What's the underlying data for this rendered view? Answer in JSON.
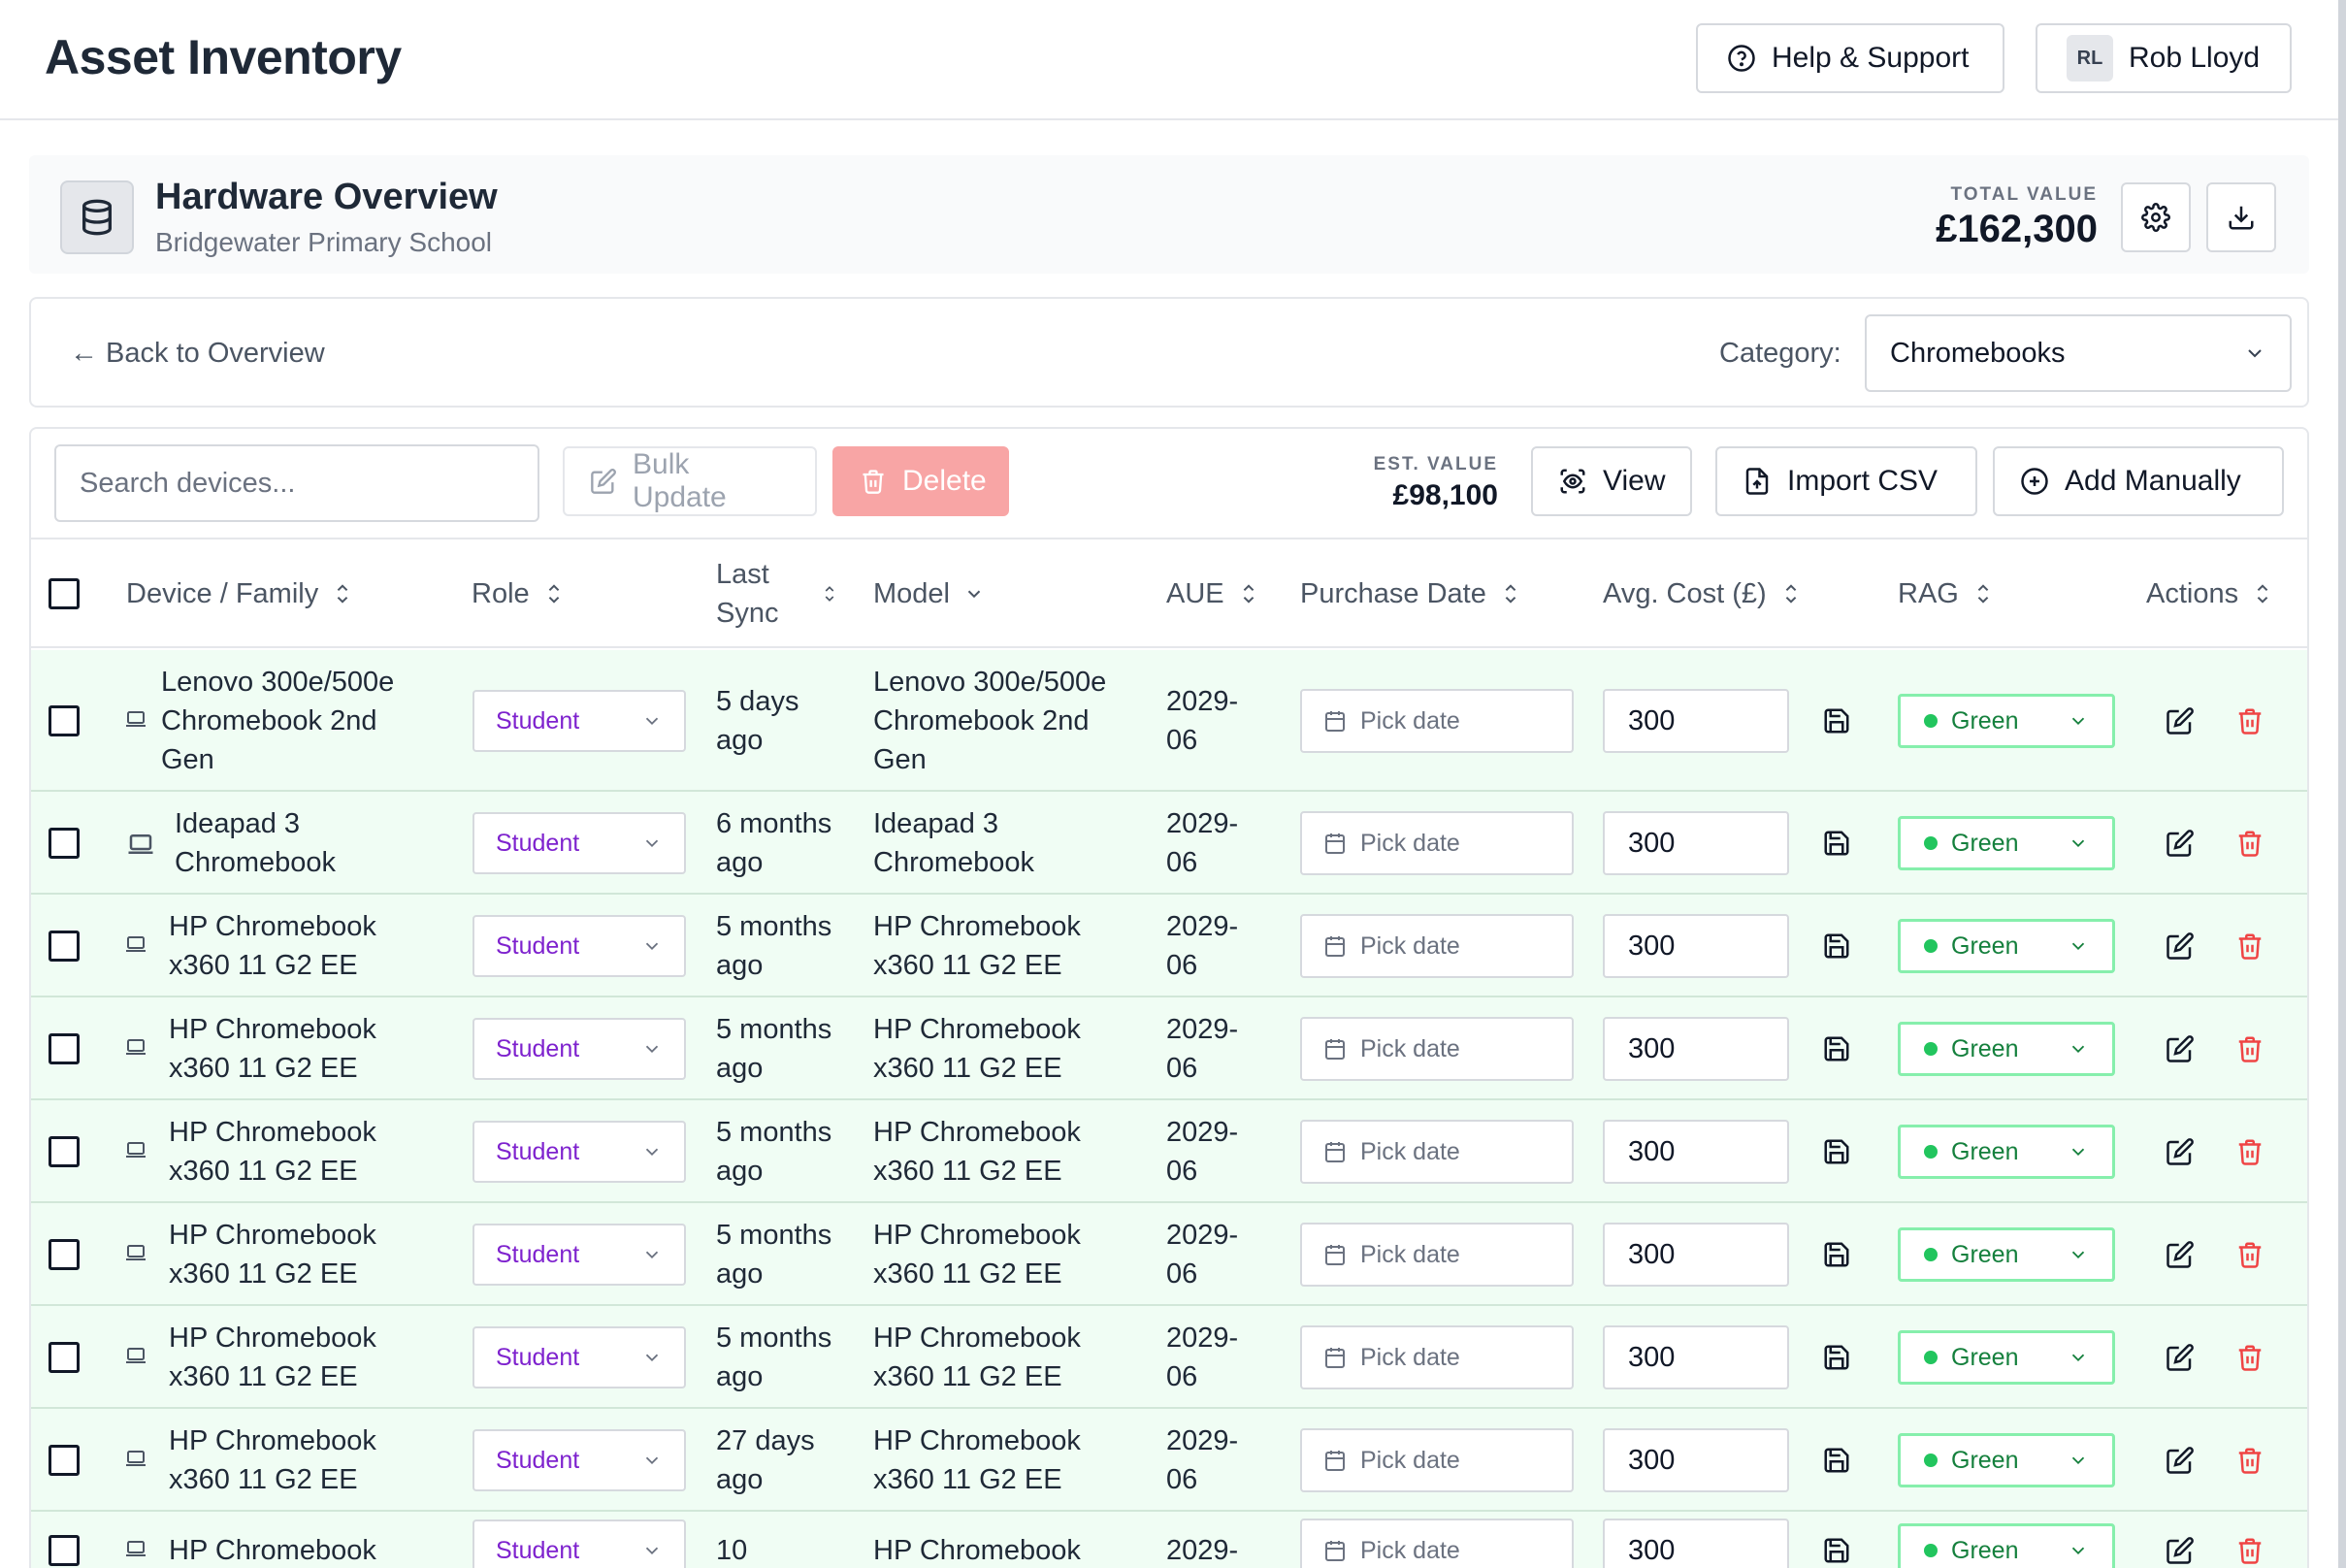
{
  "header": {
    "title": "Asset Inventory",
    "help_label": "Help & Support",
    "user_initials": "RL",
    "user_name": "Rob Lloyd"
  },
  "overview": {
    "title": "Hardware Overview",
    "subtitle": "Bridgewater Primary School",
    "total_value_label": "TOTAL VALUE",
    "total_value": "£162,300"
  },
  "category_bar": {
    "back_label": "← Back to Overview",
    "category_label": "Category:",
    "category_value": "Chromebooks"
  },
  "toolbar": {
    "search_placeholder": "Search devices...",
    "bulk_update_label": "Bulk Update",
    "delete_label": "Delete",
    "est_value_label": "EST. VALUE",
    "est_value": "£98,100",
    "view_label": "View",
    "import_label": "Import CSV",
    "add_label": "Add Manually"
  },
  "table": {
    "headers": {
      "device": "Device / Family",
      "role": "Role",
      "last_sync_1": "Last",
      "last_sync_2": "Sync",
      "model": "Model",
      "aue": "AUE",
      "purchase_date": "Purchase Date",
      "avg_cost": "Avg. Cost (£)",
      "rag": "RAG",
      "actions": "Actions"
    },
    "date_placeholder": "Pick date",
    "rows": [
      {
        "device": [
          "Lenovo 300e/500e",
          "Chromebook 2nd",
          "Gen"
        ],
        "role": "Student",
        "sync": [
          "5 days",
          "ago"
        ],
        "model": [
          "Lenovo 300e/500e",
          "Chromebook 2nd",
          "Gen"
        ],
        "aue": [
          "2029-",
          "06"
        ],
        "cost": "300",
        "rag": "Green"
      },
      {
        "device": [
          "Ideapad 3",
          "Chromebook"
        ],
        "role": "Student",
        "sync": [
          "6 months",
          "ago"
        ],
        "model": [
          "Ideapad 3",
          "Chromebook"
        ],
        "aue": [
          "2029-",
          "06"
        ],
        "cost": "300",
        "rag": "Green"
      },
      {
        "device": [
          "HP Chromebook",
          "x360 11 G2 EE"
        ],
        "role": "Student",
        "sync": [
          "5 months",
          "ago"
        ],
        "model": [
          "HP Chromebook",
          "x360 11 G2 EE"
        ],
        "aue": [
          "2029-",
          "06"
        ],
        "cost": "300",
        "rag": "Green"
      },
      {
        "device": [
          "HP Chromebook",
          "x360 11 G2 EE"
        ],
        "role": "Student",
        "sync": [
          "5 months",
          "ago"
        ],
        "model": [
          "HP Chromebook",
          "x360 11 G2 EE"
        ],
        "aue": [
          "2029-",
          "06"
        ],
        "cost": "300",
        "rag": "Green"
      },
      {
        "device": [
          "HP Chromebook",
          "x360 11 G2 EE"
        ],
        "role": "Student",
        "sync": [
          "5 months",
          "ago"
        ],
        "model": [
          "HP Chromebook",
          "x360 11 G2 EE"
        ],
        "aue": [
          "2029-",
          "06"
        ],
        "cost": "300",
        "rag": "Green"
      },
      {
        "device": [
          "HP Chromebook",
          "x360 11 G2 EE"
        ],
        "role": "Student",
        "sync": [
          "5 months",
          "ago"
        ],
        "model": [
          "HP Chromebook",
          "x360 11 G2 EE"
        ],
        "aue": [
          "2029-",
          "06"
        ],
        "cost": "300",
        "rag": "Green"
      },
      {
        "device": [
          "HP Chromebook",
          "x360 11 G2 EE"
        ],
        "role": "Student",
        "sync": [
          "5 months",
          "ago"
        ],
        "model": [
          "HP Chromebook",
          "x360 11 G2 EE"
        ],
        "aue": [
          "2029-",
          "06"
        ],
        "cost": "300",
        "rag": "Green"
      },
      {
        "device": [
          "HP Chromebook",
          "x360 11 G2 EE"
        ],
        "role": "Student",
        "sync": [
          "27 days",
          "ago"
        ],
        "model": [
          "HP Chromebook",
          "x360 11 G2 EE"
        ],
        "aue": [
          "2029-",
          "06"
        ],
        "cost": "300",
        "rag": "Green"
      },
      {
        "device": [
          "HP Chromebook"
        ],
        "role": "Student",
        "sync": [
          "10"
        ],
        "model": [
          "HP Chromebook"
        ],
        "aue": [
          "2029-"
        ],
        "cost": "300",
        "rag": "Green"
      }
    ]
  },
  "colors": {
    "row_bg": "#f0fdf4",
    "role_text": "#7e22ce",
    "rag_green": "#22c55e",
    "delete_bg": "#f8a5a5",
    "trash_red": "#ef4444"
  }
}
